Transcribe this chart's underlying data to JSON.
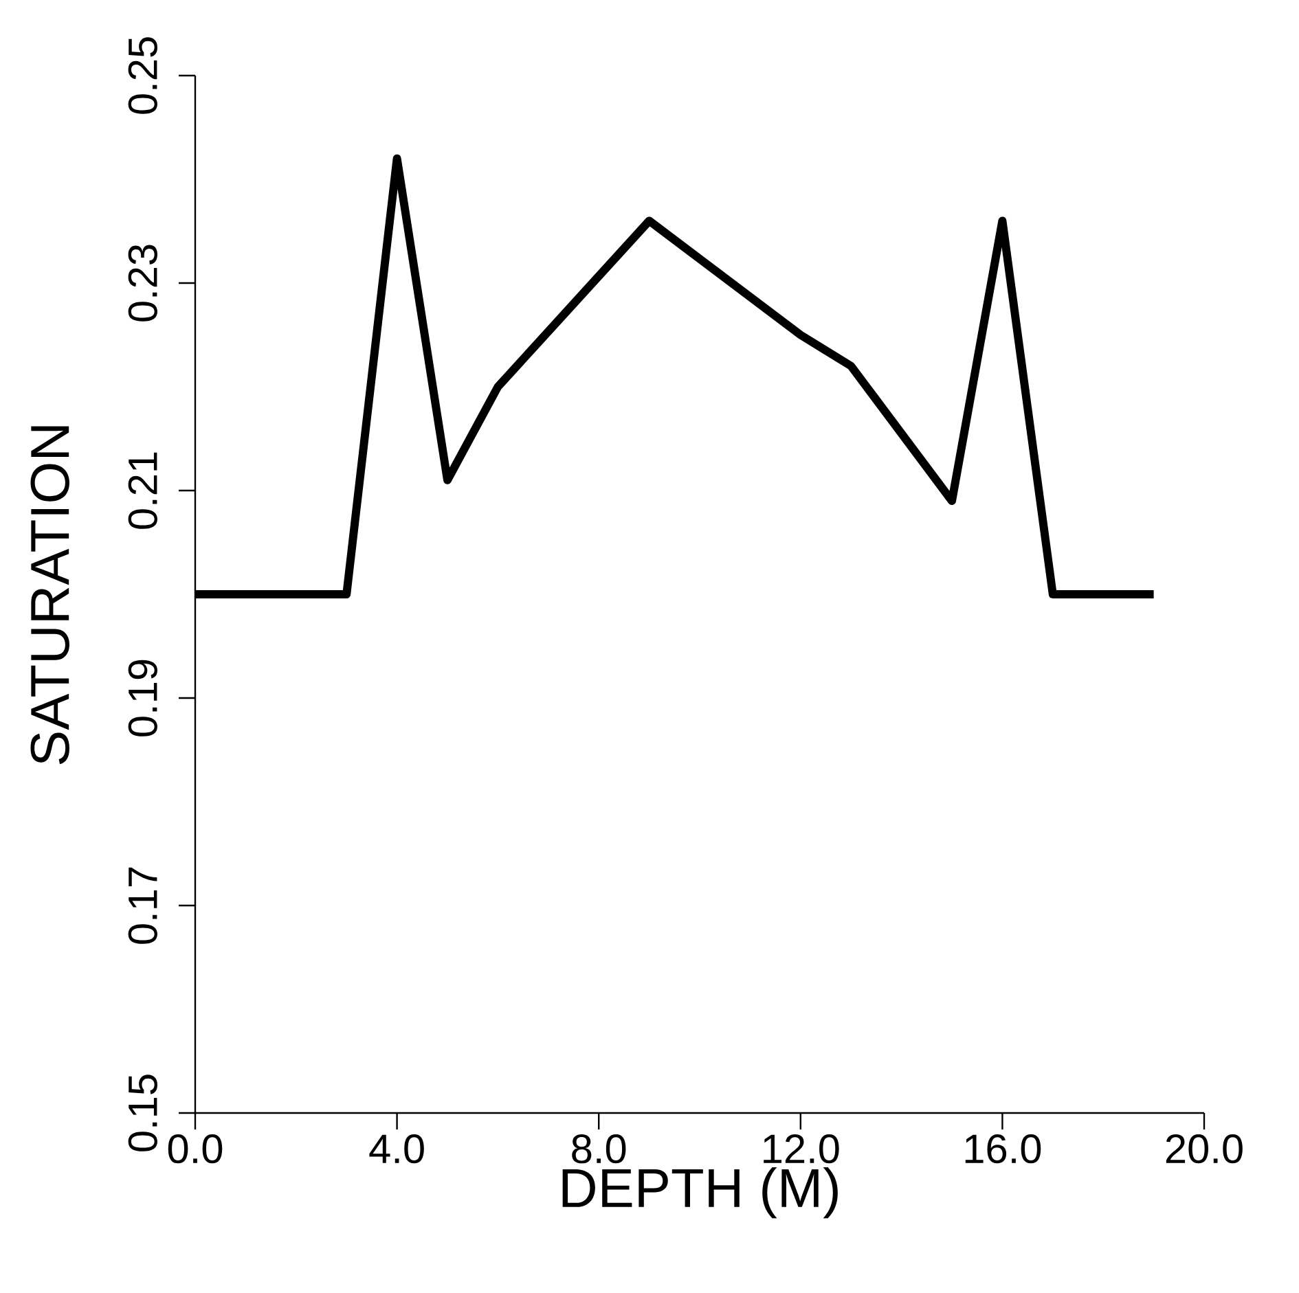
{
  "chart_data": {
    "type": "line",
    "xlabel": "DEPTH (M)",
    "ylabel": "SATURATION",
    "x": [
      0,
      3,
      4,
      5,
      6,
      9,
      12,
      13,
      15,
      16,
      17,
      19
    ],
    "values": [
      0.2,
      0.2,
      0.242,
      0.211,
      0.22,
      0.236,
      0.225,
      0.222,
      0.209,
      0.236,
      0.2,
      0.2
    ],
    "color": "#000000",
    "line_style": "solid",
    "xlim": [
      0,
      20
    ],
    "ylim": [
      0.15,
      0.25
    ],
    "xticks": [
      {
        "value": 0,
        "label": "0.0"
      },
      {
        "value": 4,
        "label": "4.0"
      },
      {
        "value": 8,
        "label": "8.0"
      },
      {
        "value": 12,
        "label": "12.0"
      },
      {
        "value": 16,
        "label": "16.0"
      },
      {
        "value": 20,
        "label": "20.0"
      }
    ],
    "yticks": [
      0.15,
      0.17,
      0.19,
      0.21,
      0.23,
      0.25
    ]
  }
}
